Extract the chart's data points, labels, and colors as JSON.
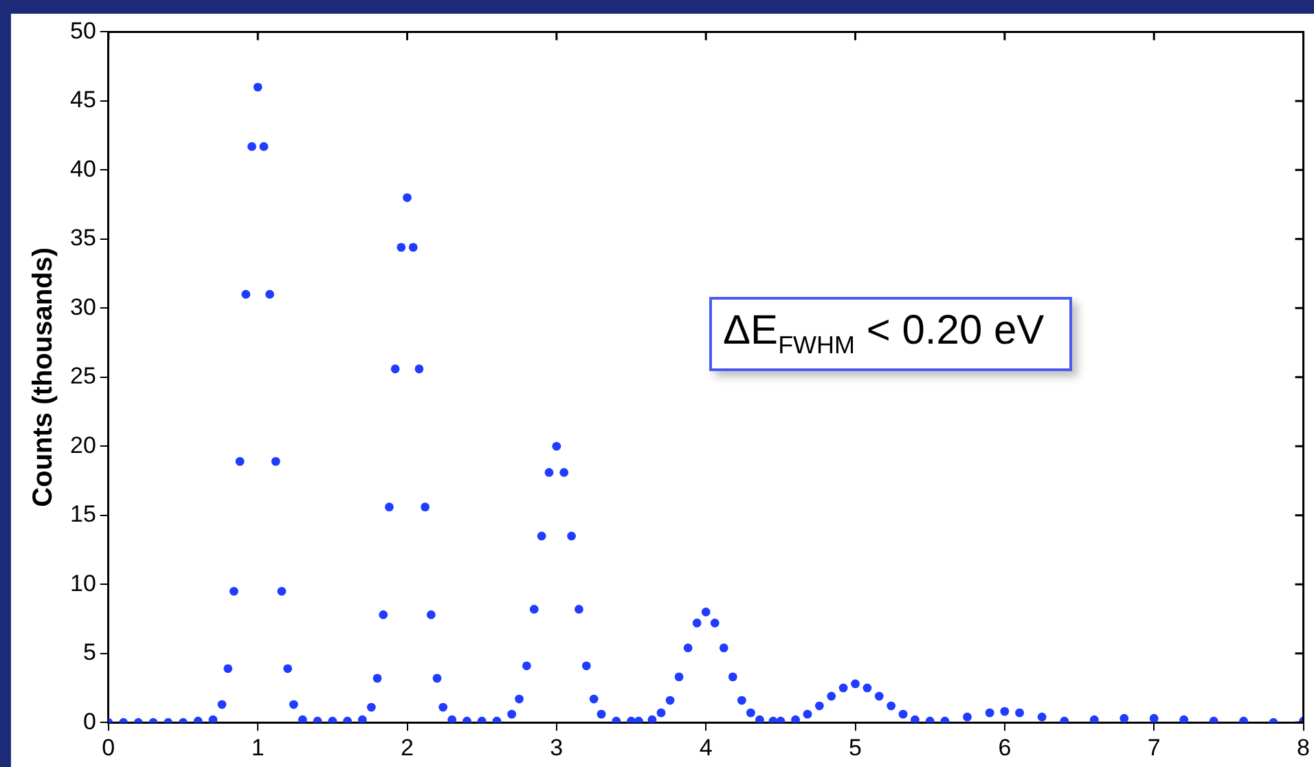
{
  "chart_data": {
    "type": "scatter",
    "ylabel": "Counts (thousands)",
    "annotations": [
      "ΔE$_{FWHM}$ < 0.20 eV"
    ],
    "xlim": [
      0,
      8
    ],
    "xticks": [
      0,
      1,
      2,
      3,
      4,
      5,
      6,
      7,
      8
    ],
    "ylim": [
      0,
      50
    ],
    "yticks": [
      0,
      5,
      10,
      15,
      20,
      25,
      30,
      35,
      40,
      45,
      50
    ],
    "marker": "circle",
    "grid": false,
    "legend": false,
    "series": [
      {
        "color": "#1f3cff",
        "x": [
          0,
          0.1,
          0.2,
          0.3,
          0.4,
          0.5,
          0.6,
          0.7,
          0.76,
          0.8,
          0.84,
          0.88,
          0.92,
          0.96,
          1.0,
          1.04,
          1.08,
          1.12,
          1.16,
          1.2,
          1.24,
          1.3,
          1.4,
          1.5,
          1.6,
          1.7,
          1.76,
          1.8,
          1.84,
          1.88,
          1.92,
          1.96,
          2.0,
          2.04,
          2.08,
          2.12,
          2.16,
          2.2,
          2.24,
          2.3,
          2.4,
          2.5,
          2.6,
          2.7,
          2.75,
          2.8,
          2.85,
          2.9,
          2.95,
          3.0,
          3.05,
          3.1,
          3.15,
          3.2,
          3.25,
          3.3,
          3.4,
          3.5,
          3.55,
          3.64,
          3.7,
          3.76,
          3.82,
          3.88,
          3.94,
          4.0,
          4.06,
          4.12,
          4.18,
          4.24,
          4.3,
          4.36,
          4.45,
          4.5,
          4.6,
          4.68,
          4.76,
          4.84,
          4.92,
          5.0,
          5.08,
          5.16,
          5.24,
          5.32,
          5.4,
          5.5,
          5.6,
          5.75,
          5.9,
          6.0,
          6.1,
          6.25,
          6.4,
          6.6,
          6.8,
          7.0,
          7.2,
          7.4,
          7.6,
          7.8,
          8.0
        ],
        "values": [
          0,
          0,
          0,
          0,
          0,
          0,
          0.1,
          0.2,
          1.3,
          3.9,
          9.5,
          18.9,
          31.0,
          41.7,
          46,
          41.7,
          31.0,
          18.9,
          9.5,
          3.9,
          1.3,
          0.2,
          0.1,
          0.1,
          0.1,
          0.2,
          1.1,
          3.2,
          7.8,
          15.6,
          25.6,
          34.4,
          38,
          34.4,
          25.6,
          15.6,
          7.8,
          3.2,
          1.1,
          0.2,
          0.1,
          0.1,
          0.1,
          0.6,
          1.7,
          4.1,
          8.2,
          13.5,
          18.1,
          20,
          18.1,
          13.5,
          8.2,
          4.1,
          1.7,
          0.6,
          0.1,
          0.1,
          0.1,
          0.2,
          0.7,
          1.6,
          3.3,
          5.4,
          7.2,
          8,
          7.2,
          5.4,
          3.3,
          1.6,
          0.7,
          0.2,
          0.1,
          0.1,
          0.2,
          0.6,
          1.2,
          1.9,
          2.5,
          2.8,
          2.5,
          1.9,
          1.2,
          0.6,
          0.2,
          0.1,
          0.1,
          0.4,
          0.7,
          0.8,
          0.7,
          0.4,
          0.1,
          0.2,
          0.3,
          0.3,
          0.2,
          0.1,
          0.1,
          0,
          0.1
        ]
      }
    ]
  }
}
